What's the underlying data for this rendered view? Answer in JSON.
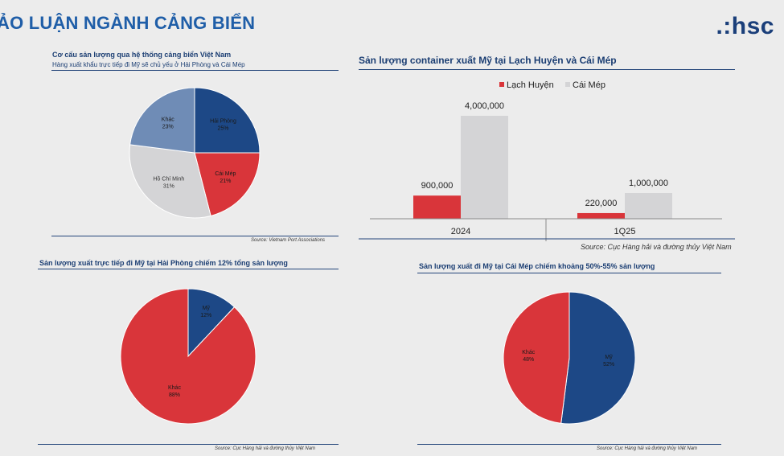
{
  "header": {
    "title": "ẢO LUẬN NGÀNH CẢNG BIỂN",
    "logo": ".:hsc"
  },
  "colors": {
    "navy": "#1d4886",
    "red": "#d9353a",
    "light_gray": "#d4d4d6",
    "steel_blue": "#6f8cb6",
    "title_blue": "#1f5ea8"
  },
  "panels": {
    "p1": {
      "title": "Cơ cấu sản lượng qua hệ thống cảng biển Việt Nam",
      "subtitle": "Hàng xuất khẩu trực tiếp đi Mỹ sẽ chủ yếu ở Hải Phòng và Cái Mép",
      "source": "Source: Vietnam Port Associations"
    },
    "p2": {
      "title": "Sản lượng container xuất Mỹ tại Lạch Huyện và Cái Mép",
      "source": "Source: Cục Hàng hải và đường thủy Việt Nam"
    },
    "p3": {
      "title": "Sản lượng xuất trực tiếp đi Mỹ tại Hải Phòng chiếm 12% tổng sản lượng",
      "source": "Source: Cục Hàng hải và đường thủy Việt Nam"
    },
    "p4": {
      "title": "Sản lượng xuất đi Mỹ tại Cái Mép chiếm khoảng 50%-55% sản lượng",
      "source": "Source: Cục Hàng hải và đường thủy Việt Nam"
    }
  },
  "chart_data": [
    {
      "type": "pie",
      "slices": [
        {
          "label": "Hải Phòng",
          "pct_label": "25%",
          "value": 25,
          "color": "#1d4886"
        },
        {
          "label": "Cái Mép",
          "pct_label": "21%",
          "value": 21,
          "color": "#d9353a"
        },
        {
          "label": "Hồ Chí Minh",
          "pct_label": "31%",
          "value": 31,
          "color": "#d4d4d6"
        },
        {
          "label": "Khác",
          "pct_label": "23%",
          "value": 23,
          "color": "#6f8cb6"
        }
      ]
    },
    {
      "type": "bar",
      "categories": [
        "2024",
        "1Q25"
      ],
      "series": [
        {
          "name": "Lạch Huyện",
          "color": "#d9353a",
          "values": [
            900000,
            220000
          ],
          "value_labels": [
            "900,000",
            "220,000"
          ]
        },
        {
          "name": "Cái Mép",
          "color": "#d4d4d6",
          "values": [
            4000000,
            1000000
          ],
          "value_labels": [
            "4,000,000",
            "1,000,000"
          ]
        }
      ],
      "ylim": [
        0,
        4000000
      ],
      "legend": "top"
    },
    {
      "type": "pie",
      "slices": [
        {
          "label": "Mỹ",
          "pct_label": "12%",
          "value": 12,
          "color": "#1d4886"
        },
        {
          "label": "Khác",
          "pct_label": "88%",
          "value": 88,
          "color": "#d9353a"
        }
      ]
    },
    {
      "type": "pie",
      "slices": [
        {
          "label": "Mỹ",
          "pct_label": "52%",
          "value": 52,
          "color": "#1d4886"
        },
        {
          "label": "Khác",
          "pct_label": "48%",
          "value": 48,
          "color": "#d9353a"
        }
      ]
    }
  ]
}
